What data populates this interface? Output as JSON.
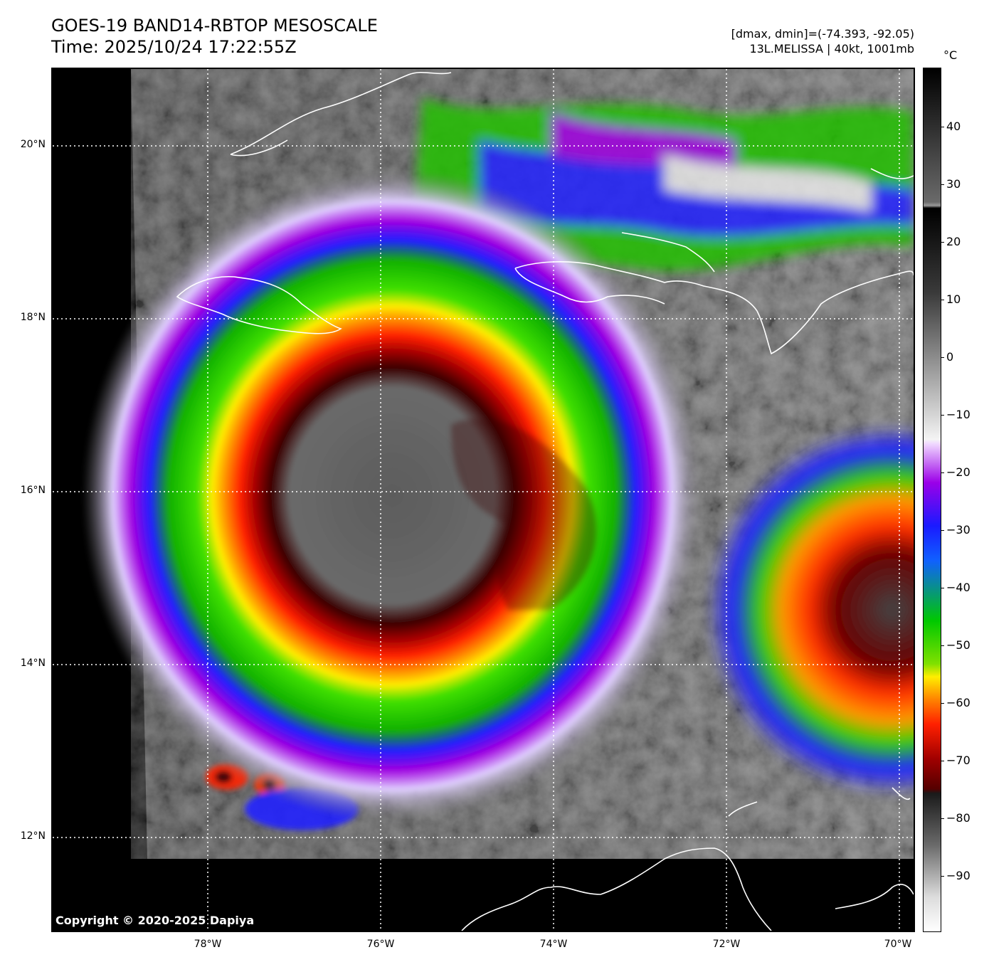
{
  "header": {
    "title_line1": "GOES-19 BAND14-RBTOP MESOSCALE",
    "title_line2": "Time: 2025/10/24 17:22:55Z",
    "stats_line": "[dmax, dmin]=(-74.393, -92.05)",
    "storm_line": "13L.MELISSA | 40kt, 1001mb"
  },
  "map": {
    "lat_labels": [
      "20°N",
      "18°N",
      "16°N",
      "14°N",
      "12°N"
    ],
    "lon_labels": [
      "78°W",
      "76°W",
      "74°W",
      "72°W",
      "70°W"
    ],
    "gridlines": "dotted white",
    "coastline_color": "#ffffff"
  },
  "colorbar": {
    "unit": "°C",
    "ticks": [
      "40",
      "30",
      "20",
      "10",
      "0",
      "−10",
      "−20",
      "−30",
      "−40",
      "−50",
      "−60",
      "−70",
      "−80",
      "−90"
    ],
    "colors": {
      "warm_gray_top": "#111111",
      "violet": "#9b00e8",
      "blue": "#1010ff",
      "green": "#00c800",
      "yellow": "#ffee00",
      "orange": "#ff8800",
      "red": "#e00000",
      "dark_red": "#550000",
      "cold_gray": "#dcdcdc"
    }
  },
  "footer": {
    "copyright": "Copyright © 2020-2025 Dapiya"
  }
}
